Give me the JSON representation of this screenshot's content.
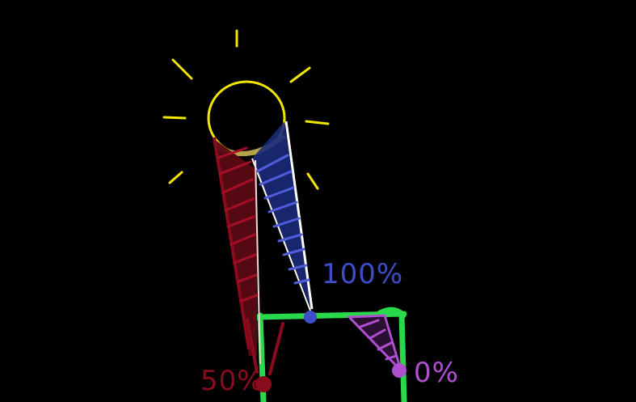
{
  "diagram": {
    "labels": {
      "full": "100%",
      "half": "50%",
      "none": "0%"
    },
    "colors": {
      "background": "#000000",
      "sun": "#f2e600",
      "half_beam": "#8b0b1e",
      "full_beam": "#3f4dc8",
      "none_beam": "#b04fcf",
      "frame": "#28d94a",
      "highlight": "#ffffff"
    }
  }
}
